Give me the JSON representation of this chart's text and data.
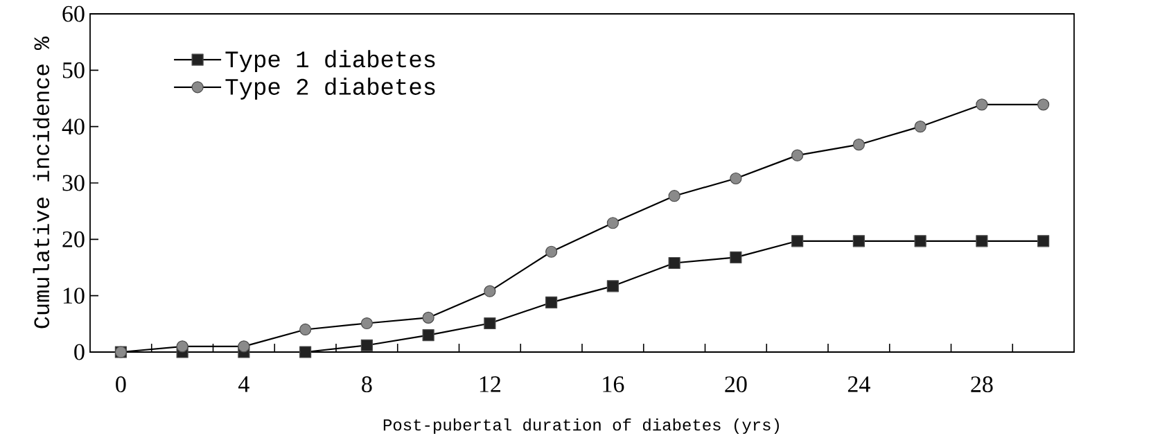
{
  "chart_data": {
    "type": "line",
    "xlabel": "Post-pubertal duration of diabetes (yrs)",
    "ylabel": "Cumulative incidence %",
    "x": [
      0,
      2,
      4,
      6,
      8,
      10,
      12,
      14,
      16,
      18,
      20,
      22,
      24,
      26,
      28,
      30
    ],
    "series": [
      {
        "name": "Type 1 diabetes",
        "color": "#222222",
        "marker": "square",
        "values": [
          0,
          0,
          0,
          0,
          1.2,
          3.0,
          5.1,
          8.8,
          11.7,
          15.8,
          16.8,
          19.7,
          19.7,
          19.7,
          19.7,
          19.7
        ]
      },
      {
        "name": "Type 2 diabetes",
        "color": "#8a8a8a",
        "marker": "circle",
        "values": [
          0,
          1.0,
          1.0,
          4.0,
          5.1,
          6.1,
          10.8,
          17.8,
          22.9,
          27.7,
          30.8,
          34.9,
          36.8,
          40.0,
          43.9,
          43.9
        ]
      }
    ],
    "xlim": [
      -1,
      31
    ],
    "xticks": [
      0,
      4,
      8,
      12,
      16,
      20,
      24,
      28,
      {
        "value": 1,
        "label": null
      },
      {
        "value": 3,
        "label": null
      },
      {
        "value": 5,
        "label": null
      },
      {
        "value": 7,
        "label": null
      },
      {
        "value": 9,
        "label": null
      },
      {
        "value": 11,
        "label": null
      },
      {
        "value": 13,
        "label": null
      },
      {
        "value": 15,
        "label": null
      },
      {
        "value": 17,
        "label": null
      },
      {
        "value": 19,
        "label": null
      },
      {
        "value": 21,
        "label": null
      },
      {
        "value": 23,
        "label": null
      },
      {
        "value": 25,
        "label": null
      },
      {
        "value": 27,
        "label": null
      },
      {
        "value": 29,
        "label": null
      }
    ],
    "ylim": [
      0,
      60
    ],
    "yticks": [
      0,
      10,
      20,
      30,
      40,
      50,
      60
    ],
    "legend": "top left",
    "line_style": "solid"
  }
}
